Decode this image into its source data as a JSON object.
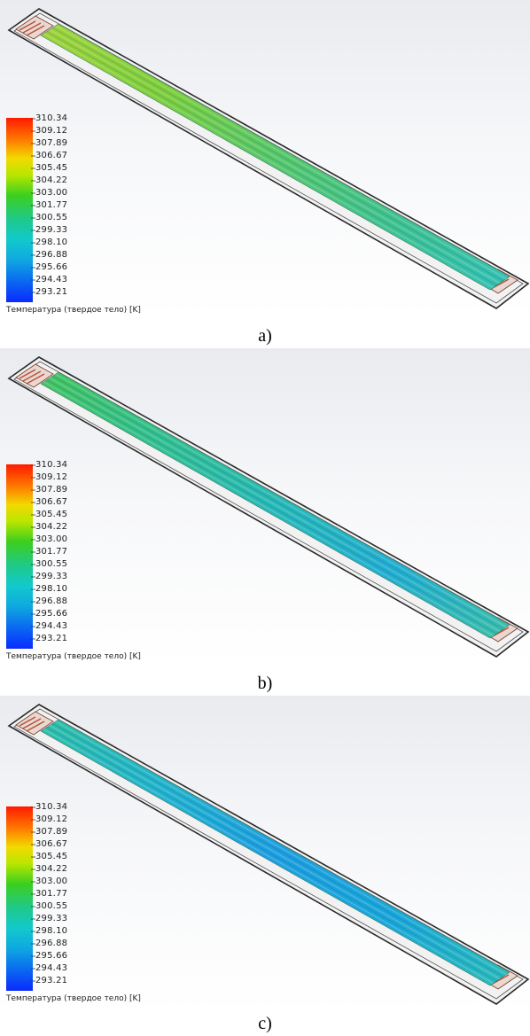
{
  "panels": [
    {
      "caption": "a)",
      "legend": {
        "title": "Температура (твердое тело) [K]",
        "ticks": [
          "310.34",
          "309.12",
          "307.89",
          "306.67",
          "305.45",
          "304.22",
          "303.00",
          "301.77",
          "300.55",
          "299.33",
          "298.10",
          "296.88",
          "295.66",
          "294.43",
          "293.21"
        ]
      },
      "strip_colors": [
        "#9fd33a",
        "#7fcf3a",
        "#56c86a",
        "#3fc290",
        "#33c2b4"
      ]
    },
    {
      "caption": "b)",
      "legend": {
        "title": "Температура (твердое тело) [K]",
        "ticks": [
          "310.34",
          "309.12",
          "307.89",
          "306.67",
          "305.45",
          "304.22",
          "303.00",
          "301.77",
          "300.55",
          "299.33",
          "298.10",
          "296.88",
          "295.66",
          "294.43",
          "293.21"
        ]
      },
      "strip_colors": [
        "#43c45e",
        "#32c08f",
        "#27b9b6",
        "#22aed0",
        "#3bbfa8"
      ]
    },
    {
      "caption": "c)",
      "legend": {
        "title": "Температура (твердое тело) [K]",
        "ticks": [
          "310.34",
          "309.12",
          "307.89",
          "306.67",
          "305.45",
          "304.22",
          "303.00",
          "301.77",
          "300.55",
          "299.33",
          "298.10",
          "296.88",
          "295.66",
          "294.43",
          "293.21"
        ]
      },
      "strip_colors": [
        "#2ebfa6",
        "#22b4cc",
        "#1d9fe0",
        "#1aa7d8",
        "#2bbcb8"
      ]
    }
  ]
}
